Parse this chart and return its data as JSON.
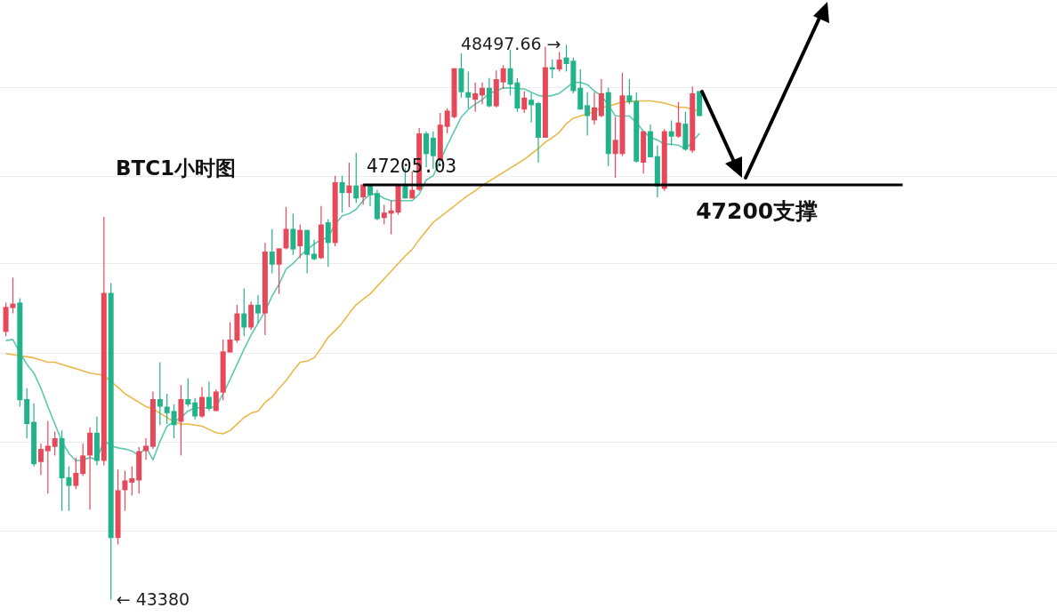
{
  "chart_data": {
    "type": "candlestick",
    "title": "BTC1小时图",
    "categories": [
      null,
      null,
      null,
      null,
      null,
      null,
      null,
      null,
      null,
      null,
      null,
      null,
      null,
      null,
      null,
      null,
      null,
      null,
      null,
      null,
      null,
      null,
      null,
      null,
      null,
      null,
      null,
      null,
      null,
      null,
      null,
      null,
      null,
      null,
      null,
      null,
      null,
      null,
      null,
      null,
      null,
      null,
      null,
      null,
      null,
      null,
      null,
      null,
      null,
      null,
      null,
      null,
      null,
      null,
      null,
      null,
      null,
      null,
      null,
      null,
      null,
      null,
      null,
      null,
      null,
      null,
      null,
      null,
      null,
      null,
      null,
      null,
      null,
      null,
      null,
      null,
      null,
      null,
      null,
      null,
      null,
      null,
      null,
      null,
      null,
      null,
      null,
      null,
      null,
      null,
      null,
      null,
      null,
      null,
      null,
      null,
      null,
      null,
      null,
      null
    ],
    "ohlc": [
      [
        45850,
        46120,
        45810,
        46080
      ],
      [
        46070,
        46350,
        46020,
        46110
      ],
      [
        46120,
        46160,
        45160,
        45220
      ],
      [
        45230,
        45330,
        44870,
        45000
      ],
      [
        45020,
        45190,
        44610,
        44630
      ],
      [
        44650,
        44820,
        44530,
        44770
      ],
      [
        44750,
        45030,
        44360,
        44800
      ],
      [
        44790,
        44930,
        44710,
        44870
      ],
      [
        44870,
        44940,
        44200,
        44500
      ],
      [
        44510,
        44610,
        44200,
        44430
      ],
      [
        44430,
        44690,
        44400,
        44550
      ],
      [
        44540,
        44820,
        44520,
        44710
      ],
      [
        44710,
        44970,
        44210,
        44920
      ],
      [
        44920,
        45070,
        44620,
        44660
      ],
      [
        44660,
        46910,
        44620,
        46210
      ],
      [
        46210,
        46300,
        43380,
        43950
      ],
      [
        43950,
        44580,
        43890,
        44390
      ],
      [
        44390,
        44570,
        44200,
        44480
      ],
      [
        44460,
        44610,
        44340,
        44500
      ],
      [
        44480,
        44790,
        44360,
        44750
      ],
      [
        44750,
        44870,
        44670,
        44800
      ],
      [
        44790,
        45300,
        44770,
        45230
      ],
      [
        45230,
        45570,
        44990,
        45160
      ],
      [
        45160,
        45280,
        45000,
        45100
      ],
      [
        45120,
        45180,
        44870,
        44990
      ],
      [
        45020,
        45360,
        44710,
        45230
      ],
      [
        45230,
        45420,
        45160,
        45180
      ],
      [
        45200,
        45240,
        45040,
        45070
      ],
      [
        45070,
        45340,
        45060,
        45250
      ],
      [
        45250,
        45390,
        45120,
        45140
      ],
      [
        45120,
        45320,
        45120,
        45300
      ],
      [
        45290,
        45780,
        45220,
        45670
      ],
      [
        45660,
        45940,
        45660,
        45780
      ],
      [
        45770,
        46100,
        45750,
        46020
      ],
      [
        46020,
        46250,
        45810,
        45890
      ],
      [
        45890,
        46130,
        45870,
        46100
      ],
      [
        46100,
        46190,
        45930,
        46020
      ],
      [
        46020,
        46670,
        45820,
        46590
      ],
      [
        46590,
        46800,
        46390,
        46470
      ],
      [
        46470,
        46620,
        46200,
        46620
      ],
      [
        46620,
        47000,
        46610,
        46800
      ],
      [
        46800,
        46940,
        46560,
        46610
      ],
      [
        46640,
        46840,
        46530,
        46790
      ],
      [
        46790,
        46790,
        46390,
        46560
      ],
      [
        46570,
        46700,
        46510,
        46520
      ],
      [
        46530,
        47010,
        46520,
        46840
      ],
      [
        46860,
        46890,
        46450,
        46670
      ],
      [
        46670,
        47290,
        46640,
        47230
      ],
      [
        47230,
        47290,
        46950,
        47130
      ],
      [
        47130,
        47410,
        47000,
        47200
      ],
      [
        47200,
        47500,
        47040,
        47080
      ],
      [
        47090,
        47210,
        47020,
        47210
      ],
      [
        47210,
        47210,
        47010,
        47110
      ],
      [
        47130,
        47160,
        46880,
        46890
      ],
      [
        46900,
        47020,
        46840,
        46950
      ],
      [
        46940,
        47060,
        46750,
        46970
      ],
      [
        46950,
        47210,
        46930,
        47210
      ],
      [
        47210,
        47360,
        47080,
        47080
      ],
      [
        47080,
        47330,
        47080,
        47160
      ],
      [
        47160,
        47730,
        47150,
        47680
      ],
      [
        47680,
        47700,
        47370,
        47490
      ],
      [
        47640,
        47700,
        47350,
        47470
      ],
      [
        47430,
        47870,
        47430,
        47760
      ],
      [
        47740,
        47910,
        47680,
        47890
      ],
      [
        47830,
        48280,
        47820,
        48280
      ],
      [
        48280,
        48420,
        48010,
        48060
      ],
      [
        48060,
        48250,
        47910,
        48010
      ],
      [
        47990,
        48150,
        47880,
        48050
      ],
      [
        48030,
        48150,
        47950,
        48100
      ],
      [
        48100,
        48190,
        47920,
        47930
      ],
      [
        47930,
        48260,
        47920,
        48180
      ],
      [
        48150,
        48310,
        48090,
        48280
      ],
      [
        48280,
        48450,
        48030,
        48130
      ],
      [
        48150,
        48190,
        47880,
        47910
      ],
      [
        47900,
        48070,
        47870,
        48010
      ],
      [
        47990,
        48050,
        47780,
        47940
      ],
      [
        47960,
        47970,
        47410,
        47640
      ],
      [
        47640,
        48480,
        47640,
        48290
      ],
      [
        48290,
        48360,
        48190,
        48270
      ],
      [
        48270,
        48430,
        48250,
        48360
      ],
      [
        48380,
        48497.66,
        48250,
        48320
      ],
      [
        48350,
        48380,
        48050,
        48070
      ],
      [
        48100,
        48270,
        47900,
        47900
      ],
      [
        47940,
        48060,
        47660,
        47840
      ],
      [
        47800,
        48060,
        47760,
        47920
      ],
      [
        47840,
        48180,
        47830,
        48050
      ],
      [
        48060,
        48100,
        47380,
        47490
      ],
      [
        47490,
        47830,
        47270,
        47620
      ],
      [
        47490,
        48240,
        47470,
        48030
      ],
      [
        48030,
        48180,
        47950,
        47970
      ],
      [
        47980,
        48060,
        47410,
        47420
      ],
      [
        47410,
        47700,
        47310,
        47700
      ],
      [
        47700,
        47760,
        47460,
        47460
      ],
      [
        47470,
        47570,
        47090,
        47190
      ],
      [
        47170,
        47720,
        47150,
        47700
      ],
      [
        47700,
        47800,
        47570,
        47650
      ],
      [
        47650,
        47970,
        47640,
        47780
      ],
      [
        47770,
        47880,
        47520,
        47530
      ],
      [
        47520,
        48110,
        47500,
        48050
      ],
      [
        48070,
        48070,
        47840,
        47840
      ]
    ],
    "colors": [
      "#e5495a",
      "#e5495a",
      "#22b38a",
      "#22b38a",
      "#22b38a",
      "#e5495a",
      "#e5495a",
      "#e5495a",
      "#22b38a",
      "#22b38a",
      "#e5495a",
      "#e5495a",
      "#e5495a",
      "#22b38a",
      "#e5495a",
      "#22b38a",
      "#e5495a",
      "#e5495a",
      "#e5495a",
      "#e5495a",
      "#e5495a",
      "#e5495a",
      "#22b38a",
      "#22b38a",
      "#22b38a",
      "#e5495a",
      "#22b38a",
      "#22b38a",
      "#e5495a",
      "#22b38a",
      "#e5495a",
      "#e5495a",
      "#e5495a",
      "#e5495a",
      "#22b38a",
      "#e5495a",
      "#22b38a",
      "#e5495a",
      "#22b38a",
      "#e5495a",
      "#e5495a",
      "#22b38a",
      "#e5495a",
      "#22b38a",
      "#22b38a",
      "#e5495a",
      "#22b38a",
      "#e5495a",
      "#22b38a",
      "#e5495a",
      "#22b38a",
      "#e5495a",
      "#22b38a",
      "#22b38a",
      "#e5495a",
      "#e5495a",
      "#e5495a",
      "#22b38a",
      "#e5495a",
      "#e5495a",
      "#22b38a",
      "#22b38a",
      "#e5495a",
      "#e5495a",
      "#e5495a",
      "#22b38a",
      "#22b38a",
      "#e5495a",
      "#e5495a",
      "#22b38a",
      "#e5495a",
      "#e5495a",
      "#22b38a",
      "#22b38a",
      "#e5495a",
      "#22b38a",
      "#22b38a",
      "#e5495a",
      "#22b38a",
      "#e5495a",
      "#22b38a",
      "#22b38a",
      "#22b38a",
      "#22b38a",
      "#e5495a",
      "#e5495a",
      "#22b38a",
      "#e5495a",
      "#e5495a",
      "#22b38a",
      "#22b38a",
      "#e5495a",
      "#22b38a",
      "#22b38a",
      "#e5495a",
      "#22b38a",
      "#e5495a",
      "#22b38a",
      "#e5495a",
      "#22b38a"
    ],
    "series": [
      {
        "type": "line",
        "color": "#5cc8b0",
        "values": [
          45770,
          45780,
          45660,
          45550,
          45470,
          45330,
          45160,
          45000,
          44840,
          44730,
          44660,
          44670,
          44690,
          44670,
          44850,
          44800,
          44780,
          44770,
          44750,
          44710,
          44790,
          44670,
          44840,
          44980,
          45020,
          45060,
          45120,
          45150,
          45150,
          45150,
          45160,
          45280,
          45410,
          45550,
          45690,
          45820,
          45930,
          46040,
          46180,
          46290,
          46430,
          46480,
          46550,
          46610,
          46660,
          46700,
          46720,
          46840,
          46920,
          46940,
          46980,
          47060,
          47120,
          47120,
          47080,
          47060,
          47060,
          47060,
          47060,
          47120,
          47250,
          47290,
          47430,
          47570,
          47700,
          47830,
          47900,
          47950,
          47990,
          48050,
          48070,
          48100,
          48100,
          48090,
          48090,
          48060,
          48030,
          48020,
          48030,
          48050,
          48100,
          48150,
          48150,
          48130,
          48070,
          48030,
          47940,
          47840,
          47840,
          47840,
          47780,
          47700,
          47640,
          47620,
          47580,
          47580,
          47570,
          47540,
          47600,
          47680
        ]
      },
      {
        "type": "line",
        "color": "#e9b949",
        "values": [
          45650,
          45640,
          45630,
          45620,
          45610,
          45590,
          45570,
          45570,
          45550,
          45530,
          45510,
          45490,
          45470,
          45460,
          45450,
          45390,
          45340,
          45280,
          45240,
          45200,
          45160,
          45140,
          45100,
          45060,
          45020,
          45000,
          45000,
          44990,
          44980,
          44950,
          44920,
          44910,
          44940,
          45000,
          45060,
          45100,
          45120,
          45200,
          45250,
          45330,
          45400,
          45490,
          45570,
          45580,
          45610,
          45700,
          45800,
          45860,
          45930,
          46020,
          46100,
          46150,
          46200,
          46270,
          46340,
          46410,
          46480,
          46550,
          46610,
          46700,
          46780,
          46860,
          46910,
          46960,
          47010,
          47060,
          47110,
          47150,
          47200,
          47240,
          47280,
          47320,
          47360,
          47400,
          47440,
          47490,
          47540,
          47600,
          47640,
          47690,
          47770,
          47820,
          47840,
          47860,
          47880,
          47920,
          47930,
          47950,
          47970,
          47970,
          47980,
          47980,
          47980,
          47970,
          47960,
          47940,
          47920,
          47920,
          47900,
          47890
        ]
      }
    ],
    "ylim": [
      43230,
      48910
    ],
    "yticks": [
      {
        "value": 44020,
        "label": null
      },
      {
        "value": 44840,
        "label": null
      },
      {
        "value": 45660,
        "label": null
      },
      {
        "value": 46480,
        "label": null
      },
      {
        "value": 47290,
        "label": null
      },
      {
        "value": 48110,
        "label": null
      }
    ],
    "grid": "y",
    "ref_lines": [
      {
        "axis": "y",
        "value": 47205.03,
        "label": "47205.03",
        "color": "#000000"
      }
    ],
    "annotations": [
      "47200支撑",
      "48497.66 →",
      "← 43380"
    ]
  }
}
